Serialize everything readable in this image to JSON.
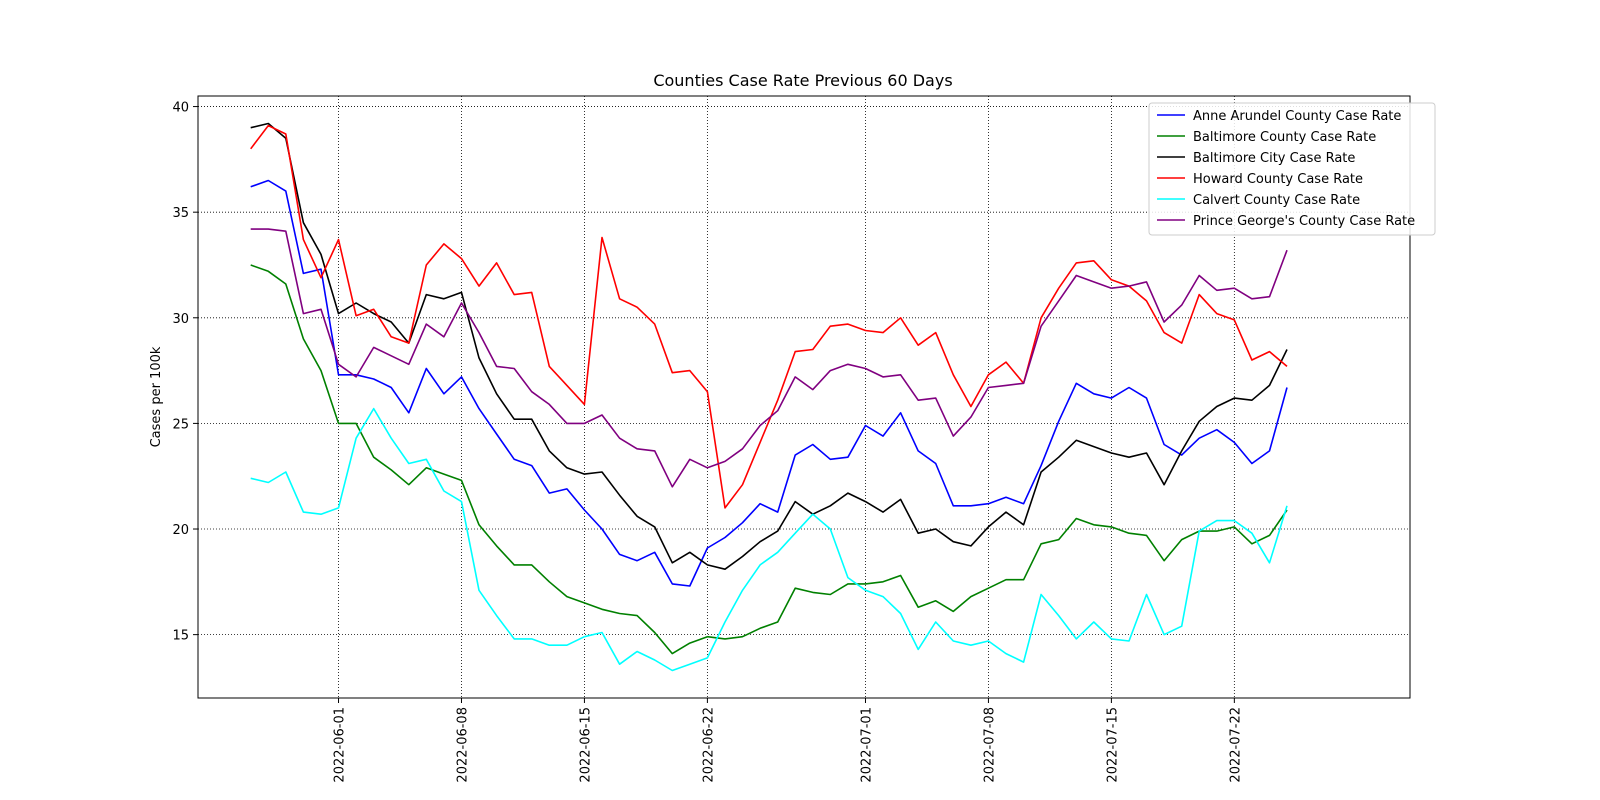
{
  "chart_data": {
    "type": "line",
    "title": "Counties Case Rate Previous 60 Days",
    "xlabel": "",
    "ylabel": "Cases per 100k",
    "x_start": "2022-05-27",
    "x_ticks": [
      "2022-06-01",
      "2022-06-08",
      "2022-06-15",
      "2022-06-22",
      "2022-07-01",
      "2022-07-08",
      "2022-07-15",
      "2022-07-22"
    ],
    "xlim": [
      "2022-05-24",
      "2022-08-01"
    ],
    "y_ticks": [
      15,
      20,
      25,
      30,
      35,
      40
    ],
    "ylim": [
      12,
      40.5
    ],
    "grid": true,
    "legend_position": "top-right",
    "series": [
      {
        "name": "Anne Arundel County Case Rate",
        "color": "#0000ff",
        "values": [
          36.2,
          36.5,
          36.0,
          32.1,
          32.3,
          27.3,
          27.3,
          27.1,
          26.7,
          25.5,
          27.6,
          26.4,
          27.2,
          25.7,
          24.5,
          23.3,
          23.0,
          21.7,
          21.9,
          20.9,
          20.0,
          18.8,
          18.5,
          18.9,
          17.4,
          17.3,
          19.1,
          19.6,
          20.3,
          21.2,
          20.8,
          23.5,
          24.0,
          23.3,
          23.4,
          24.9,
          24.4,
          25.5,
          23.7,
          23.1,
          21.1,
          21.1,
          21.2,
          21.5,
          21.2,
          23.0,
          25.1,
          26.9,
          26.4,
          26.2,
          26.7,
          26.2,
          24.0,
          23.5,
          24.3,
          24.7,
          24.1,
          23.1,
          23.7,
          26.7
        ]
      },
      {
        "name": "Baltimore County Case Rate",
        "color": "#008000",
        "values": [
          32.5,
          32.2,
          31.6,
          29.0,
          27.5,
          25.0,
          25.0,
          23.4,
          22.8,
          22.1,
          22.9,
          22.6,
          22.3,
          20.2,
          19.2,
          18.3,
          18.3,
          17.5,
          16.8,
          16.5,
          16.2,
          16.0,
          15.9,
          15.1,
          14.1,
          14.6,
          14.9,
          14.8,
          14.9,
          15.3,
          15.6,
          17.2,
          17.0,
          16.9,
          17.4,
          17.4,
          17.5,
          17.8,
          16.3,
          16.6,
          16.1,
          16.8,
          17.2,
          17.6,
          17.6,
          19.3,
          19.5,
          20.5,
          20.2,
          20.1,
          19.8,
          19.7,
          18.5,
          19.5,
          19.9,
          19.9,
          20.1,
          19.3,
          19.7,
          20.9
        ]
      },
      {
        "name": "Baltimore City Case Rate",
        "color": "#000000",
        "values": [
          39.0,
          39.2,
          38.5,
          34.5,
          33.0,
          30.2,
          30.7,
          30.2,
          29.8,
          28.8,
          31.1,
          30.9,
          31.2,
          28.1,
          26.4,
          25.2,
          25.2,
          23.7,
          22.9,
          22.6,
          22.7,
          21.6,
          20.6,
          20.1,
          18.4,
          18.9,
          18.3,
          18.1,
          18.7,
          19.4,
          19.9,
          21.3,
          20.7,
          21.1,
          21.7,
          21.3,
          20.8,
          21.4,
          19.8,
          20.0,
          19.4,
          19.2,
          20.1,
          20.8,
          20.2,
          22.7,
          23.4,
          24.2,
          23.9,
          23.6,
          23.4,
          23.6,
          22.1,
          23.7,
          25.1,
          25.8,
          26.2,
          26.1,
          26.8,
          28.5
        ]
      },
      {
        "name": "Howard County Case Rate",
        "color": "#ff0000",
        "values": [
          38.0,
          39.1,
          38.7,
          33.7,
          31.9,
          33.7,
          30.1,
          30.4,
          29.1,
          28.8,
          32.5,
          33.5,
          32.8,
          31.5,
          32.6,
          31.1,
          31.2,
          27.7,
          26.8,
          25.9,
          33.8,
          30.9,
          30.5,
          29.7,
          27.4,
          27.5,
          26.5,
          21.0,
          22.1,
          24.1,
          26.1,
          28.4,
          28.5,
          29.6,
          29.7,
          29.4,
          29.3,
          30.0,
          28.7,
          29.3,
          27.3,
          25.8,
          27.3,
          27.9,
          26.9,
          30.0,
          31.4,
          32.6,
          32.7,
          31.8,
          31.5,
          30.8,
          29.3,
          28.8,
          31.1,
          30.2,
          29.9,
          28.0,
          28.4,
          27.7
        ]
      },
      {
        "name": "Calvert County Case Rate",
        "color": "#00ffff",
        "values": [
          22.4,
          22.2,
          22.7,
          20.8,
          20.7,
          21.0,
          24.3,
          25.7,
          24.3,
          23.1,
          23.3,
          21.8,
          21.3,
          17.1,
          15.9,
          14.8,
          14.8,
          14.5,
          14.5,
          14.9,
          15.1,
          13.6,
          14.2,
          13.8,
          13.3,
          13.6,
          13.9,
          15.6,
          17.1,
          18.3,
          18.9,
          19.8,
          20.7,
          20.0,
          17.7,
          17.1,
          16.8,
          16.0,
          14.3,
          15.6,
          14.7,
          14.5,
          14.7,
          14.1,
          13.7,
          16.9,
          15.9,
          14.8,
          15.6,
          14.8,
          14.7,
          16.9,
          15.0,
          15.4,
          19.9,
          20.4,
          20.4,
          19.8,
          18.4,
          21.1
        ]
      },
      {
        "name": "Prince George's County Case Rate",
        "color": "#800080",
        "values": [
          34.2,
          34.2,
          34.1,
          30.2,
          30.4,
          27.8,
          27.2,
          28.6,
          28.2,
          27.8,
          29.7,
          29.1,
          30.7,
          29.3,
          27.7,
          27.6,
          26.5,
          25.9,
          25.0,
          25.0,
          25.4,
          24.3,
          23.8,
          23.7,
          22.0,
          23.3,
          22.9,
          23.2,
          23.8,
          24.9,
          25.6,
          27.2,
          26.6,
          27.5,
          27.8,
          27.6,
          27.2,
          27.3,
          26.1,
          26.2,
          24.4,
          25.3,
          26.7,
          26.8,
          26.9,
          29.6,
          30.8,
          32.0,
          31.7,
          31.4,
          31.5,
          31.7,
          29.8,
          30.6,
          32.0,
          31.3,
          31.4,
          30.9,
          31.0,
          33.2
        ]
      }
    ]
  }
}
